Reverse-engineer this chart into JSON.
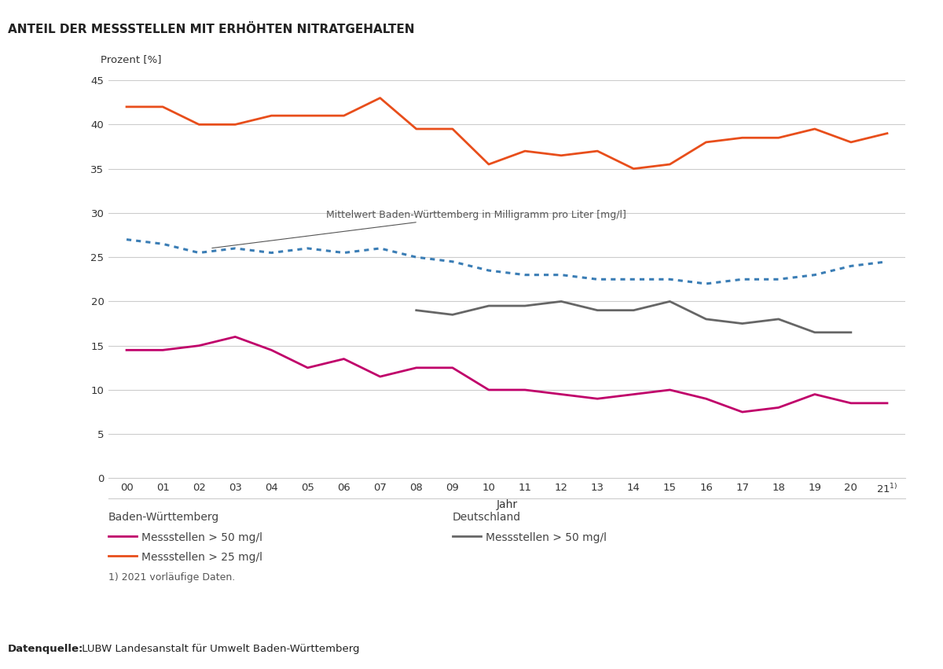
{
  "title": "ANTEIL DER MESSSTELLEN MIT ERHÖHTEN NITRATGEHALTEN",
  "ylabel": "Prozent [%]",
  "xlabel": "Jahr",
  "years_bw": [
    2000,
    2001,
    2002,
    2003,
    2004,
    2005,
    2006,
    2007,
    2008,
    2009,
    2010,
    2011,
    2012,
    2013,
    2014,
    2015,
    2016,
    2017,
    2018,
    2019,
    2020,
    2021
  ],
  "bw_50": [
    14.5,
    14.5,
    15.0,
    16.0,
    14.5,
    12.5,
    13.5,
    11.5,
    12.5,
    12.5,
    10.0,
    10.0,
    9.5,
    9.0,
    9.5,
    10.0,
    9.0,
    7.5,
    8.0,
    9.5,
    8.5,
    8.5
  ],
  "bw_25": [
    42.0,
    42.0,
    40.0,
    40.0,
    41.0,
    41.0,
    41.0,
    43.0,
    39.5,
    39.5,
    35.5,
    37.0,
    36.5,
    37.0,
    35.0,
    35.5,
    38.0,
    38.5,
    38.5,
    39.5,
    38.0,
    39.0
  ],
  "bw_mean": [
    27.0,
    26.5,
    25.5,
    26.0,
    25.5,
    26.0,
    25.5,
    26.0,
    25.0,
    24.5,
    23.5,
    23.0,
    23.0,
    22.5,
    22.5,
    22.5,
    22.0,
    22.5,
    22.5,
    23.0,
    24.0,
    24.5
  ],
  "years_de": [
    2008,
    2009,
    2010,
    2011,
    2012,
    2013,
    2014,
    2015,
    2016,
    2017,
    2018,
    2019,
    2020
  ],
  "de_50": [
    19.0,
    18.5,
    19.5,
    19.5,
    20.0,
    19.0,
    19.0,
    20.0,
    18.0,
    17.5,
    18.0,
    16.5,
    16.5
  ],
  "color_bw_50": "#c0006a",
  "color_bw_25": "#e84e1b",
  "color_bw_mean": "#3a7db5",
  "color_de_50": "#666666",
  "ylim": [
    0,
    45
  ],
  "yticks": [
    0,
    5,
    10,
    15,
    20,
    25,
    30,
    35,
    40,
    45
  ],
  "annotation_text": "Mittelwert Baden-Württemberg in Milligramm pro Liter [mg/l]",
  "legend_bw_label": "Baden-Württemberg",
  "legend_de_label": "Deutschland",
  "legend_bw_50": "Messstellen > 50 mg/l",
  "legend_bw_25": "Messstellen > 25 mg/l",
  "legend_de_50": "Messstellen > 50 mg/l",
  "footnote": "1) 2021 vorläufige Daten.",
  "source_bold": "Datenquelle:",
  "source_normal": " LUBW Landesanstalt für Umwelt Baden-Württemberg",
  "background_color": "#ffffff"
}
